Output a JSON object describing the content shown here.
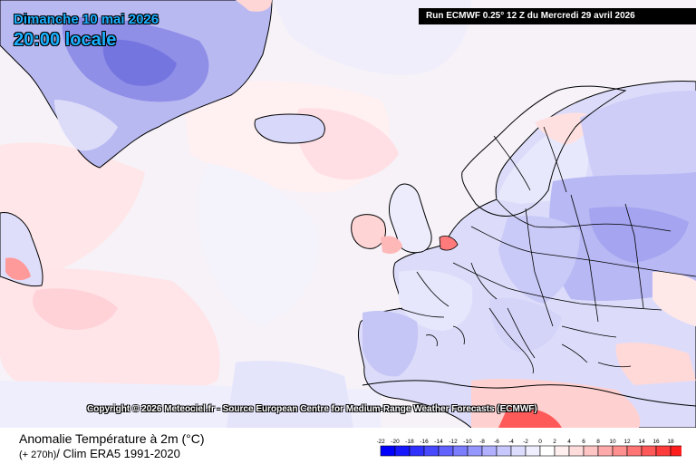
{
  "header": {
    "date": "Dimanche 10 mai 2026",
    "time": "20:00 locale",
    "run": "Run ECMWF 0.25° 12 Z du Mercredi 29 avril 2026"
  },
  "copyright": "Copyright © 2026 Meteociel.fr - Source European Centre for Medium-Range Weather Forecasts (ECMWF)",
  "footer": {
    "parameter": "Anomalie Température à 2m (°C)",
    "lead": "(+ 270h)",
    "climatology": "/ Clim ERA5 1991-2020"
  },
  "legend": {
    "labels": [
      "-22",
      "-20",
      "-18",
      "-16",
      "-14",
      "-12",
      "-10",
      "-8",
      "-6",
      "-4",
      "-2",
      "0",
      "2",
      "4",
      "6",
      "8",
      "10",
      "12",
      "14",
      "16",
      "18",
      "20"
    ],
    "colors": [
      "#0000ff",
      "#1818ff",
      "#3030ff",
      "#4848ff",
      "#6262ff",
      "#7c7cff",
      "#9696ff",
      "#b0b0ff",
      "#c8c8ff",
      "#dcdcff",
      "#eeeeff",
      "#ffffff",
      "#ffeeee",
      "#ffdcdc",
      "#ffc4c4",
      "#ffaaaa",
      "#ff9090",
      "#ff7474",
      "#ff5858",
      "#ff3c3c",
      "#ff1e1e"
    ]
  },
  "colors": {
    "cold_strong": "#7f7ff0",
    "cold_mid": "#a8a8f6",
    "cold_light": "#d6d6fb",
    "warm_light": "#ffe0e0",
    "warm_mid": "#ffc6c6",
    "warm_strong": "#ff6a6a",
    "coast": "#000000",
    "border": "#000000"
  }
}
